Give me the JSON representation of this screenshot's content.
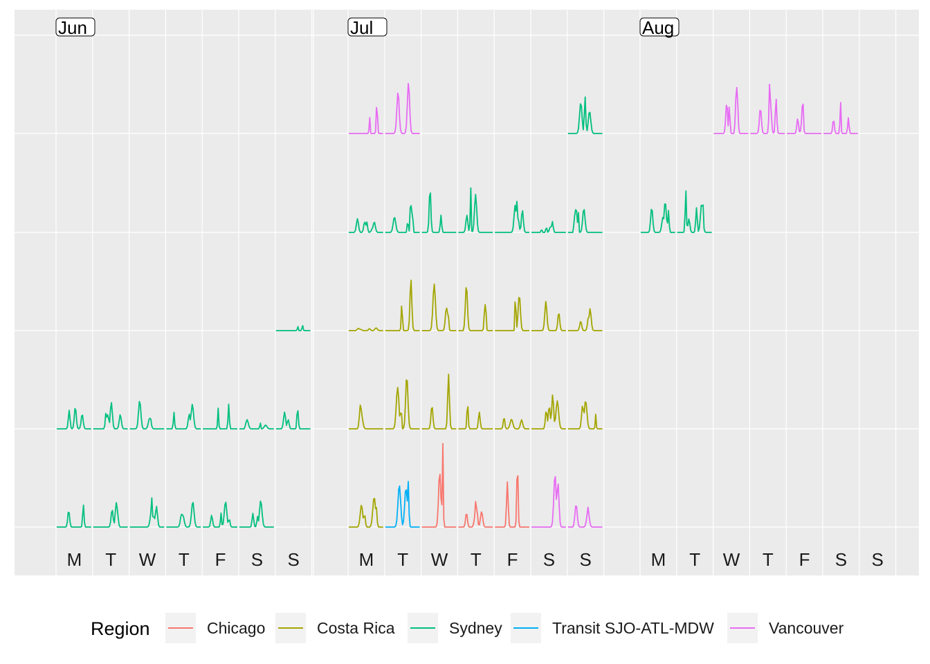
{
  "chart_data": {
    "type": "line",
    "title": "",
    "xlabel": "",
    "ylabel": "",
    "grid": true,
    "legend_placement": "bottom",
    "months": [
      "Jun",
      "Jul",
      "Aug"
    ],
    "day_labels": [
      "M",
      "T",
      "W",
      "T",
      "F",
      "S",
      "S"
    ],
    "week_rows": 5,
    "legend": {
      "title": "Region",
      "entries": [
        {
          "name": "Chicago",
          "color": "#F8766D"
        },
        {
          "name": "Costa Rica",
          "color": "#A3A500"
        },
        {
          "name": "Sydney",
          "color": "#00BF7D"
        },
        {
          "name": "Transit SJO-ATL-MDW",
          "color": "#00B0F6"
        },
        {
          "name": "Vancouver",
          "color": "#E76BF3"
        }
      ]
    },
    "daily_peaks": [
      {
        "month": "Jun",
        "week": 5,
        "day": 1,
        "region": "Sydney",
        "peak": 0.25
      },
      {
        "month": "Jun",
        "week": 5,
        "day": 2,
        "region": "Sydney",
        "peak": 0.27
      },
      {
        "month": "Jun",
        "week": 5,
        "day": 3,
        "region": "Sydney",
        "peak": 0.32
      },
      {
        "month": "Jun",
        "week": 5,
        "day": 4,
        "region": "Sydney",
        "peak": 0.28
      },
      {
        "month": "Jun",
        "week": 5,
        "day": 5,
        "region": "Sydney",
        "peak": 0.28
      },
      {
        "month": "Jun",
        "week": 5,
        "day": 6,
        "region": "Sydney",
        "peak": 0.29
      },
      {
        "month": "Jun",
        "week": 4,
        "day": 1,
        "region": "Sydney",
        "peak": 0.24
      },
      {
        "month": "Jun",
        "week": 4,
        "day": 2,
        "region": "Sydney",
        "peak": 0.29
      },
      {
        "month": "Jun",
        "week": 4,
        "day": 3,
        "region": "Sydney",
        "peak": 0.31
      },
      {
        "month": "Jun",
        "week": 4,
        "day": 4,
        "region": "Sydney",
        "peak": 0.27
      },
      {
        "month": "Jun",
        "week": 4,
        "day": 5,
        "region": "Sydney",
        "peak": 0.27
      },
      {
        "month": "Jun",
        "week": 4,
        "day": 6,
        "region": "Sydney",
        "peak": 0.1
      },
      {
        "month": "Jun",
        "week": 4,
        "day": 7,
        "region": "Sydney",
        "peak": 0.24
      },
      {
        "month": "Jun",
        "week": 3,
        "day": 7,
        "region": "Sydney",
        "peak": 0.06
      },
      {
        "month": "Jul",
        "week": 5,
        "day": 1,
        "region": "Costa Rica",
        "peak": 0.33
      },
      {
        "month": "Jul",
        "week": 5,
        "day": 2,
        "region": "Transit SJO-ATL-MDW",
        "peak": 0.52
      },
      {
        "month": "Jul",
        "week": 5,
        "day": 3,
        "region": "Chicago",
        "peak": 0.95
      },
      {
        "month": "Jul",
        "week": 5,
        "day": 4,
        "region": "Chicago",
        "peak": 0.33
      },
      {
        "month": "Jul",
        "week": 5,
        "day": 5,
        "region": "Chicago",
        "peak": 0.71
      },
      {
        "month": "Jul",
        "week": 5,
        "day": 6,
        "region": "Vancouver",
        "peak": 0.58
      },
      {
        "month": "Jul",
        "week": 5,
        "day": 7,
        "region": "Vancouver",
        "peak": 0.25
      },
      {
        "month": "Jul",
        "week": 4,
        "day": 1,
        "region": "Costa Rica",
        "peak": 0.27
      },
      {
        "month": "Jul",
        "week": 4,
        "day": 2,
        "region": "Costa Rica",
        "peak": 0.58
      },
      {
        "month": "Jul",
        "week": 4,
        "day": 3,
        "region": "Costa Rica",
        "peak": 0.6
      },
      {
        "month": "Jul",
        "week": 4,
        "day": 4,
        "region": "Costa Rica",
        "peak": 0.29
      },
      {
        "month": "Jul",
        "week": 4,
        "day": 5,
        "region": "Costa Rica",
        "peak": 0.13
      },
      {
        "month": "Jul",
        "week": 4,
        "day": 6,
        "region": "Costa Rica",
        "peak": 0.38
      },
      {
        "month": "Jul",
        "week": 4,
        "day": 7,
        "region": "Costa Rica",
        "peak": 0.31
      },
      {
        "month": "Jul",
        "week": 3,
        "day": 1,
        "region": "Costa Rica",
        "peak": 0.03
      },
      {
        "month": "Jul",
        "week": 3,
        "day": 2,
        "region": "Costa Rica",
        "peak": 0.57
      },
      {
        "month": "Jul",
        "week": 3,
        "day": 3,
        "region": "Costa Rica",
        "peak": 0.51
      },
      {
        "month": "Jul",
        "week": 3,
        "day": 4,
        "region": "Costa Rica",
        "peak": 0.5
      },
      {
        "month": "Jul",
        "week": 3,
        "day": 5,
        "region": "Costa Rica",
        "peak": 0.6
      },
      {
        "month": "Jul",
        "week": 3,
        "day": 6,
        "region": "Costa Rica",
        "peak": 0.32
      },
      {
        "month": "Jul",
        "week": 3,
        "day": 7,
        "region": "Costa Rica",
        "peak": 0.24
      },
      {
        "month": "Jul",
        "week": 2,
        "day": 1,
        "region": "Sydney",
        "peak": 0.15
      },
      {
        "month": "Jul",
        "week": 2,
        "day": 2,
        "region": "Sydney",
        "peak": 0.37
      },
      {
        "month": "Jul",
        "week": 2,
        "day": 3,
        "region": "Sydney",
        "peak": 0.49
      },
      {
        "month": "Jul",
        "week": 2,
        "day": 4,
        "region": "Sydney",
        "peak": 0.53
      },
      {
        "month": "Jul",
        "week": 2,
        "day": 5,
        "region": "Sydney",
        "peak": 0.34
      },
      {
        "month": "Jul",
        "week": 2,
        "day": 6,
        "region": "Sydney",
        "peak": 0.12
      },
      {
        "month": "Jul",
        "week": 2,
        "day": 7,
        "region": "Sydney",
        "peak": 0.31
      },
      {
        "month": "Jul",
        "week": 1,
        "day": 1,
        "region": "Vancouver",
        "peak": 0.35
      },
      {
        "month": "Jul",
        "week": 1,
        "day": 2,
        "region": "Vancouver",
        "peak": 0.56
      },
      {
        "month": "Jul",
        "week": 1,
        "day": 7,
        "region": "Sydney",
        "peak": 0.41
      },
      {
        "month": "Aug",
        "week": 2,
        "day": 1,
        "region": "Sydney",
        "peak": 0.34
      },
      {
        "month": "Aug",
        "week": 2,
        "day": 2,
        "region": "Sydney",
        "peak": 0.47
      },
      {
        "month": "Aug",
        "week": 1,
        "day": 3,
        "region": "Vancouver",
        "peak": 0.51
      },
      {
        "month": "Aug",
        "week": 1,
        "day": 4,
        "region": "Vancouver",
        "peak": 0.56
      },
      {
        "month": "Aug",
        "week": 1,
        "day": 5,
        "region": "Vancouver",
        "peak": 0.5
      },
      {
        "month": "Aug",
        "week": 1,
        "day": 6,
        "region": "Vancouver",
        "peak": 0.37
      }
    ]
  }
}
